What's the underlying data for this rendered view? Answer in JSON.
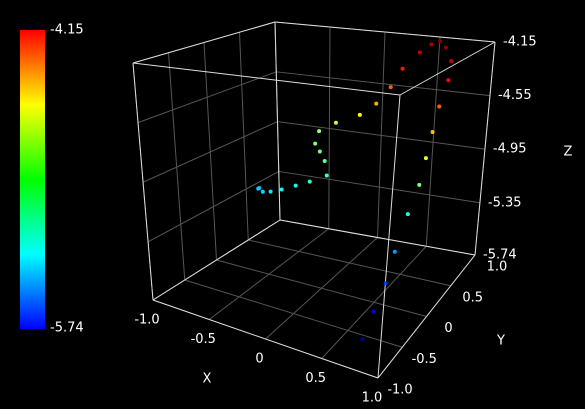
{
  "chart_data": {
    "type": "scatter3d",
    "x": [
      -0.75,
      -0.7,
      -0.6,
      -0.5,
      -0.4,
      -0.3,
      -0.2,
      -0.1,
      -0.2,
      -0.3,
      -0.4,
      -0.45,
      -0.35,
      -0.1,
      0.1,
      0.2,
      0.25,
      0.35,
      0.45,
      0.55,
      0.65,
      0.75,
      0.8,
      0.8,
      0.8,
      0.8,
      0.8,
      0.78,
      0.75,
      0.75,
      0.72,
      0.7
    ],
    "y": [
      0.3,
      0.2,
      0.1,
      0.05,
      0.05,
      0.1,
      0.15,
      0.25,
      0.4,
      0.5,
      0.6,
      0.75,
      0.85,
      0.8,
      0.7,
      0.75,
      0.85,
      0.95,
      0.95,
      0.9,
      0.8,
      0.7,
      0.55,
      0.4,
      0.3,
      0.2,
      0.1,
      -0.05,
      -0.2,
      -0.35,
      -0.5,
      -0.65
    ],
    "z": [
      -5.25,
      -5.22,
      -5.2,
      -5.17,
      -5.14,
      -5.11,
      -5.08,
      -5.05,
      -5.0,
      -4.97,
      -4.95,
      -4.9,
      -4.85,
      -4.75,
      -4.62,
      -4.5,
      -4.38,
      -4.27,
      -4.2,
      -4.16,
      -4.18,
      -4.25,
      -4.35,
      -4.5,
      -4.65,
      -4.8,
      -4.95,
      -5.1,
      -5.3,
      -5.45,
      -5.58,
      -5.7
    ],
    "xlabel": "X",
    "ylabel": "Y",
    "zlabel": "Z",
    "xlim": [
      -1.0,
      1.0
    ],
    "ylim": [
      -1.0,
      1.0
    ],
    "zlim": [
      -5.74,
      -4.15
    ],
    "xticks": [
      {
        "value": -1.0,
        "label": "-1.0"
      },
      -0.5,
      0,
      0.5,
      {
        "value": 1.0,
        "label": "1.0"
      }
    ],
    "yticks": [
      {
        "value": -1.0,
        "label": "-1.0"
      },
      -0.5,
      0,
      0.5,
      {
        "value": 1.0,
        "label": "1.0"
      }
    ],
    "zticks": [
      -4.15,
      -4.55,
      -4.95,
      -5.35,
      -5.74
    ],
    "colormap": "jet",
    "clim": [
      -5.74,
      -4.15
    ],
    "grid": true
  }
}
